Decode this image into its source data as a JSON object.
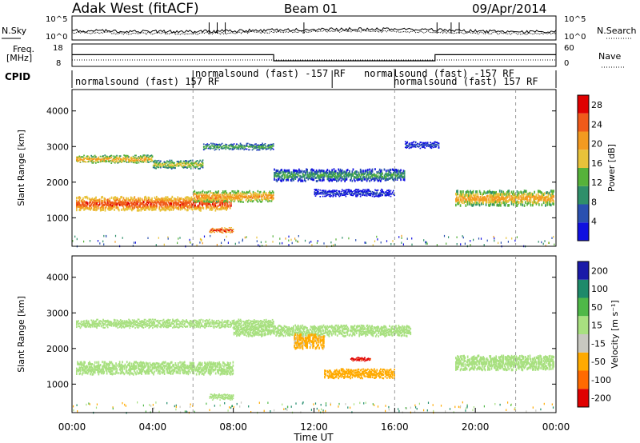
{
  "header": {
    "station": "Adak West (fitACF)",
    "beam": "Beam 01",
    "date": "09/Apr/2014"
  },
  "summary": {
    "nsky_label": "N.Sky",
    "nsearch_label": "N.Search",
    "freq_label": "Freq.",
    "freq_unit": "[MHz]",
    "nave_label": "Nave",
    "cpid_label": "CPID",
    "noise_ticks": [
      "10^5",
      "10^0"
    ],
    "freq_ticks": [
      "18",
      "8"
    ],
    "nave_ticks": [
      "60",
      "0"
    ],
    "cpid_segments": [
      {
        "label": "normalsound (fast) 157 RF",
        "start": 0,
        "end": 6
      },
      {
        "label": "normalsound (fast) -157 RF",
        "start": 6,
        "end": 12.9
      },
      {
        "label": "normalsound (fast) -157 RF",
        "start": 12.9,
        "end": 16
      },
      {
        "label": "normalsound (fast) 157 RF",
        "start": 16,
        "end": 24
      }
    ],
    "freq_steps": [
      {
        "start": 0,
        "end": 10,
        "mhz": 13.2
      },
      {
        "start": 10,
        "end": 18,
        "mhz": 10.5
      },
      {
        "start": 18,
        "end": 24,
        "mhz": 13.2
      }
    ]
  },
  "chart_data": [
    {
      "type": "heatmap",
      "name": "power",
      "ylabel": "Slant Range [km]",
      "xlabel": "Time UT",
      "xlim": [
        0,
        24
      ],
      "ylim": [
        200,
        4600
      ],
      "xticks": [
        "00:00",
        "04:00",
        "08:00",
        "12:00",
        "16:00",
        "20:00",
        "00:00"
      ],
      "yticks": [
        1000,
        2000,
        3000,
        4000
      ],
      "colorbar": {
        "label": "Power [dB]",
        "ticks": [
          4,
          8,
          12,
          16,
          20,
          24,
          28
        ],
        "range": [
          0,
          30
        ]
      },
      "bands": [
        {
          "start": 0.2,
          "end": 7.9,
          "range_km": 1400,
          "width_km": 380,
          "level": 27
        },
        {
          "start": 0.2,
          "end": 4.0,
          "range_km": 2650,
          "width_km": 200,
          "level": 22
        },
        {
          "start": 4.0,
          "end": 6.5,
          "range_km": 2500,
          "width_km": 220,
          "level": 18
        },
        {
          "start": 6.5,
          "end": 10.0,
          "range_km": 3000,
          "width_km": 160,
          "level": 15
        },
        {
          "start": 6.0,
          "end": 10.0,
          "range_km": 1600,
          "width_km": 300,
          "level": 23
        },
        {
          "start": 10.0,
          "end": 16.5,
          "range_km": 2200,
          "width_km": 330,
          "level": 13
        },
        {
          "start": 16.5,
          "end": 18.2,
          "range_km": 3050,
          "width_km": 160,
          "level": 8
        },
        {
          "start": 12.0,
          "end": 16.0,
          "range_km": 1700,
          "width_km": 180,
          "level": 7
        },
        {
          "start": 19.0,
          "end": 23.9,
          "range_km": 1550,
          "width_km": 420,
          "level": 22
        },
        {
          "start": 6.8,
          "end": 8.0,
          "range_km": 650,
          "width_km": 120,
          "level": 29
        }
      ]
    },
    {
      "type": "heatmap",
      "name": "velocity",
      "ylabel": "Slant Range [km]",
      "xlabel": "Time UT",
      "xlim": [
        0,
        24
      ],
      "ylim": [
        200,
        4600
      ],
      "xticks": [
        "00:00",
        "04:00",
        "08:00",
        "12:00",
        "16:00",
        "20:00",
        "00:00"
      ],
      "yticks": [
        1000,
        2000,
        3000,
        4000
      ],
      "colorbar": {
        "label": "Velocity [m s⁻¹]",
        "ticks": [
          "200",
          "100",
          "50",
          "15",
          "-15",
          "-50",
          "-100",
          "-200"
        ]
      },
      "bands": [
        {
          "start": 0.2,
          "end": 8.0,
          "range_km": 1450,
          "width_km": 350,
          "velocity": 0
        },
        {
          "start": 0.2,
          "end": 10.0,
          "range_km": 2700,
          "width_km": 220,
          "velocity": 0
        },
        {
          "start": 8.0,
          "end": 16.8,
          "range_km": 2500,
          "width_km": 300,
          "velocity": 0
        },
        {
          "start": 11.0,
          "end": 12.5,
          "range_km": 2200,
          "width_km": 400,
          "velocity": -60
        },
        {
          "start": 12.5,
          "end": 16.0,
          "range_km": 1300,
          "width_km": 250,
          "velocity": -70
        },
        {
          "start": 13.8,
          "end": 14.8,
          "range_km": 1700,
          "width_km": 80,
          "velocity": -210
        },
        {
          "start": 19.0,
          "end": 23.9,
          "range_km": 1600,
          "width_km": 400,
          "velocity": 0
        },
        {
          "start": 6.8,
          "end": 8.0,
          "range_km": 650,
          "width_km": 150,
          "velocity": 0
        }
      ]
    }
  ],
  "colors": {
    "power_scale": [
      "#1010e0",
      "#2a50b0",
      "#2f8f6a",
      "#56b23a",
      "#e8c23a",
      "#f39a20",
      "#f05a1a",
      "#e00000"
    ],
    "velocity_scale": [
      "#e00000",
      "#ff6a00",
      "#ffaa00",
      "#c8c8c0",
      "#a8e080",
      "#4fb848",
      "#1e8a6a",
      "#1a1aa8"
    ]
  }
}
